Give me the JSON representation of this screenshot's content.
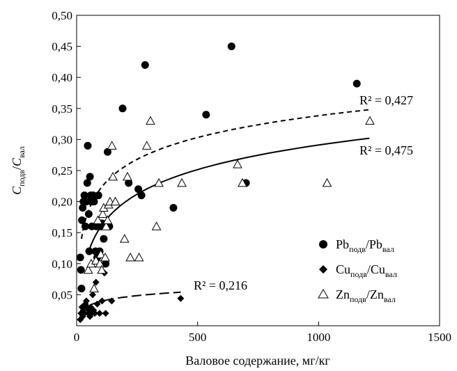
{
  "chart_data": {
    "type": "scatter",
    "xlabel": "Валовое содержание, мг/кг",
    "ylabel": {
      "c1": "C",
      "s1": "подв",
      "slash": "/",
      "c2": "C",
      "s2": "вал"
    },
    "xlim": [
      0,
      1500
    ],
    "ylim": [
      0,
      0.5
    ],
    "x_ticks": [
      {
        "value": 0,
        "label": "0"
      },
      {
        "value": 500,
        "label": "500"
      },
      {
        "value": 1000,
        "label": "1000"
      },
      {
        "value": 1500,
        "label": "1500"
      }
    ],
    "y_ticks": [
      {
        "value": 0.05,
        "label": "0,05"
      },
      {
        "value": 0.1,
        "label": "0,10"
      },
      {
        "value": 0.15,
        "label": "0,15"
      },
      {
        "value": 0.2,
        "label": "0,20"
      },
      {
        "value": 0.25,
        "label": "0,25"
      },
      {
        "value": 0.3,
        "label": "0,30"
      },
      {
        "value": 0.35,
        "label": "0,35"
      },
      {
        "value": 0.4,
        "label": "0,40"
      },
      {
        "value": 0.45,
        "label": "0,45"
      },
      {
        "value": 0.5,
        "label": "0,50"
      }
    ],
    "grid": false,
    "legend_position": "bottom-right",
    "series": [
      {
        "key": "pb",
        "legend": {
          "a": "Pb",
          "a_sub": "подв",
          "slash": "/",
          "b": "Pb",
          "b_sub": "вал"
        },
        "marker": "circle",
        "points": [
          [
            15,
            0.11
          ],
          [
            18,
            0.09
          ],
          [
            20,
            0.06
          ],
          [
            22,
            0.17
          ],
          [
            25,
            0.19
          ],
          [
            28,
            0.2
          ],
          [
            32,
            0.21
          ],
          [
            36,
            0.16
          ],
          [
            40,
            0.2
          ],
          [
            44,
            0.23
          ],
          [
            46,
            0.29
          ],
          [
            50,
            0.18
          ],
          [
            52,
            0.12
          ],
          [
            55,
            0.24
          ],
          [
            58,
            0.21
          ],
          [
            60,
            0.2
          ],
          [
            63,
            0.16
          ],
          [
            68,
            0.21
          ],
          [
            72,
            0.2
          ],
          [
            78,
            0.12
          ],
          [
            82,
            0.16
          ],
          [
            85,
            0.11
          ],
          [
            90,
            0.21
          ],
          [
            95,
            0.12
          ],
          [
            100,
            0.16
          ],
          [
            105,
            0.165
          ],
          [
            112,
            0.14
          ],
          [
            120,
            0.1
          ],
          [
            128,
            0.28
          ],
          [
            135,
            0.16
          ],
          [
            190,
            0.35
          ],
          [
            215,
            0.23
          ],
          [
            255,
            0.22
          ],
          [
            268,
            0.21
          ],
          [
            283,
            0.42
          ],
          [
            400,
            0.19
          ],
          [
            535,
            0.34
          ],
          [
            640,
            0.45
          ],
          [
            700,
            0.23
          ],
          [
            1158,
            0.39
          ]
        ],
        "trend": {
          "style": "solid",
          "r2": "R² = 0,475",
          "x_range": [
            50,
            1210
          ],
          "y_from": 0.12,
          "y_to": 0.302
        }
      },
      {
        "key": "cu",
        "legend": {
          "a": "Cu",
          "a_sub": "подв",
          "slash": "/",
          "b": "Cu",
          "b_sub": "вал"
        },
        "marker": "diamond",
        "points": [
          [
            15,
            0.01
          ],
          [
            18,
            0.02
          ],
          [
            22,
            0.03
          ],
          [
            25,
            0.015
          ],
          [
            28,
            0.025
          ],
          [
            32,
            0.02
          ],
          [
            36,
            0.035
          ],
          [
            40,
            0.04
          ],
          [
            44,
            0.03
          ],
          [
            48,
            0.02
          ],
          [
            52,
            0.025
          ],
          [
            55,
            0.015
          ],
          [
            58,
            0.03
          ],
          [
            62,
            0.02
          ],
          [
            66,
            0.05
          ],
          [
            70,
            0.025
          ],
          [
            75,
            0.02
          ],
          [
            80,
            0.07
          ],
          [
            85,
            0.035
          ],
          [
            95,
            0.02
          ],
          [
            105,
            0.04
          ],
          [
            115,
            0.085
          ],
          [
            120,
            0.02
          ],
          [
            145,
            0.04
          ],
          [
            430,
            0.044
          ]
        ],
        "trend": {
          "style": "longdash",
          "r2": "R² = 0,216",
          "x_range": [
            15,
            430
          ],
          "y_from": 0.02,
          "y_to": 0.054
        }
      },
      {
        "key": "zn",
        "legend": {
          "a": "Zn",
          "a_sub": "подв",
          "slash": "/",
          "b": "Zn",
          "b_sub": "вал"
        },
        "marker": "triangle",
        "points": [
          [
            48,
            0.09
          ],
          [
            60,
            0.1
          ],
          [
            72,
            0.06
          ],
          [
            80,
            0.105
          ],
          [
            88,
            0.17
          ],
          [
            96,
            0.1
          ],
          [
            100,
            0.115
          ],
          [
            104,
            0.09
          ],
          [
            108,
            0.18
          ],
          [
            112,
            0.19
          ],
          [
            118,
            0.11
          ],
          [
            122,
            0.16
          ],
          [
            128,
            0.17
          ],
          [
            132,
            0.195
          ],
          [
            138,
            0.2
          ],
          [
            146,
            0.29
          ],
          [
            150,
            0.24
          ],
          [
            160,
            0.2
          ],
          [
            198,
            0.14
          ],
          [
            210,
            0.24
          ],
          [
            222,
            0.11
          ],
          [
            258,
            0.11
          ],
          [
            290,
            0.29
          ],
          [
            305,
            0.33
          ],
          [
            330,
            0.16
          ],
          [
            340,
            0.23
          ],
          [
            435,
            0.23
          ],
          [
            665,
            0.26
          ],
          [
            685,
            0.23
          ],
          [
            1035,
            0.23
          ],
          [
            1212,
            0.33
          ]
        ],
        "trend": {
          "style": "dash",
          "r2": "R² = 0,427",
          "x_range": [
            20,
            1210
          ],
          "y_from": 0.14,
          "y_to": 0.348
        }
      }
    ]
  }
}
